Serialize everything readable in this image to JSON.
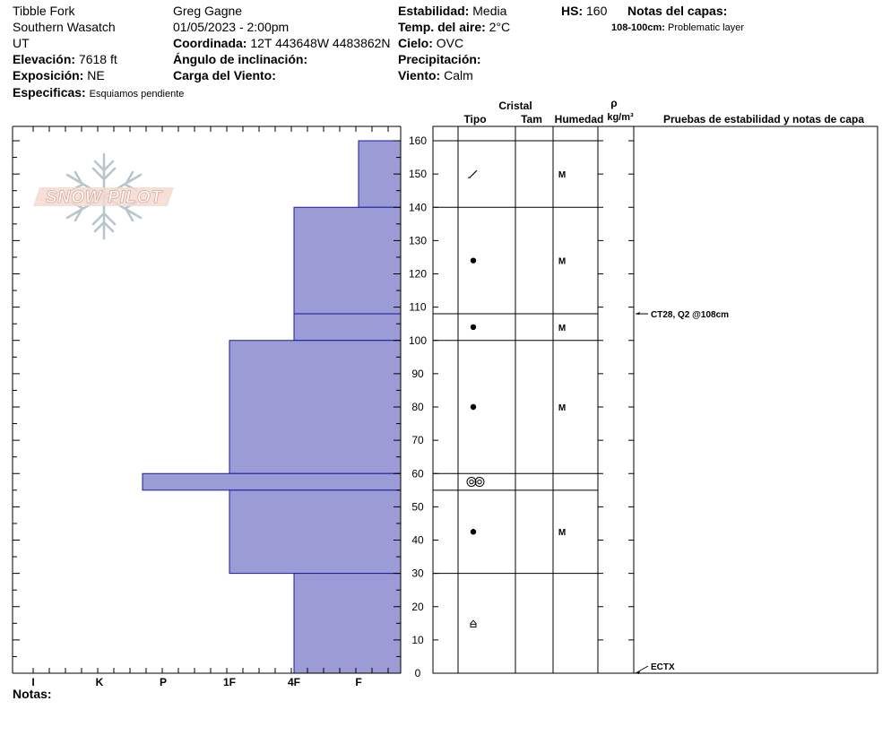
{
  "header": {
    "location": "Tibble Fork",
    "range": "Southern Wasatch",
    "state": "UT",
    "elevation_label": "Elevación:",
    "elevation": "7618 ft",
    "aspect_label": "Exposición:",
    "aspect": "NE",
    "specifics_label": "Especificas:",
    "specifics": "Esquiamos pendiente",
    "observer": "Greg Gagne",
    "datetime": "01/05/2023 - 2:00pm",
    "coord_label": "Coordinada:",
    "coord": "12T 443648W 4483862N",
    "slope_label": "Ángulo de inclinación:",
    "wind_load_label": "Carga del Viento:",
    "stability_label": "Estabilidad:",
    "stability": "Media",
    "air_temp_label": "Temp. del aire:",
    "air_temp": "2°C",
    "sky_label": "Cielo:",
    "sky": "OVC",
    "precip_label": "Precipitación:",
    "wind_label": "Viento:",
    "wind": "Calm",
    "hs_label": "HS:",
    "hs": "160",
    "layer_notes_label": "Notas del capas:",
    "layer_note_range": "108-100cm:",
    "layer_note_text": "Problematic layer",
    "notes_label": "Notas:"
  },
  "logo": {
    "text": "SNOW PILOT"
  },
  "chart_data": {
    "type": "bar",
    "subtype": "snow-hardness-profile",
    "y_axis_unit": "cm",
    "ylim": [
      0,
      160
    ],
    "y_ticks": [
      0,
      10,
      20,
      30,
      40,
      50,
      60,
      70,
      80,
      90,
      100,
      110,
      120,
      130,
      140,
      150,
      160
    ],
    "hardness_scale": [
      "I",
      "K",
      "P",
      "1F",
      "4F",
      "F"
    ],
    "layers": [
      {
        "top": 160,
        "bottom": 140,
        "hardness": "F"
      },
      {
        "top": 140,
        "bottom": 108,
        "hardness": "4F"
      },
      {
        "top": 108,
        "bottom": 100,
        "hardness": "4F"
      },
      {
        "top": 100,
        "bottom": 60,
        "hardness": "1F"
      },
      {
        "top": 60,
        "bottom": 55,
        "hardness": "P+"
      },
      {
        "top": 55,
        "bottom": 30,
        "hardness": "1F"
      },
      {
        "top": 30,
        "bottom": 0,
        "hardness": "4F"
      }
    ],
    "bar_color": "#9b9bd6",
    "bar_stroke": "#1a1a9e",
    "crystal_columns": {
      "title": "Cristal",
      "type_label": "Tipo",
      "size_label": "Tam",
      "moisture_label": "Humedad",
      "density_symbol": "ρ",
      "density_unit": "kg/m³",
      "tests_label": "Pruebas de estabilidad y notas de capa"
    },
    "crystal_rows": [
      {
        "top": 160,
        "bottom": 140,
        "grain": "decomposing",
        "moisture": "M"
      },
      {
        "top": 140,
        "bottom": 108,
        "grain": "rounded",
        "moisture": "M"
      },
      {
        "top": 108,
        "bottom": 100,
        "grain": "rounded",
        "moisture": "M"
      },
      {
        "top": 100,
        "bottom": 60,
        "grain": "rounded",
        "moisture": "M"
      },
      {
        "top": 60,
        "bottom": 55,
        "grain": "melt-freeze",
        "moisture": ""
      },
      {
        "top": 55,
        "bottom": 30,
        "grain": "rounded",
        "moisture": "M"
      },
      {
        "top": 30,
        "bottom": 0,
        "grain": "depth-hoar",
        "moisture": ""
      }
    ],
    "stability_tests": [
      {
        "depth": 108,
        "label": "CT28, Q2 @108cm"
      },
      {
        "depth": 0,
        "label": "ECTX"
      }
    ]
  }
}
